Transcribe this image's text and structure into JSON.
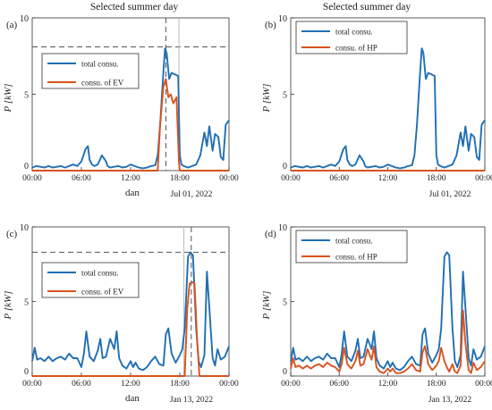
{
  "column_titles": [
    "Selected summer day",
    "Selected summer day"
  ],
  "colors": {
    "total": "#1f6fb4",
    "sub": "#d9531e",
    "axis": "#333333",
    "dash": "#555555"
  },
  "chart_data": [
    {
      "type": "line",
      "panel_label": "(a)",
      "ylabel": "P  [kW]",
      "xlabel": "dan",
      "date_label": "Jul 01, 2022",
      "ylim": [
        0,
        10
      ],
      "yticks": [
        0,
        5,
        10
      ],
      "xticks": [
        "00:00",
        "06:00",
        "12:00",
        "18:00",
        "00:00"
      ],
      "xlim_hours": [
        0,
        24
      ],
      "legend": [
        "total consu.",
        "consu. of EV"
      ],
      "legend_position": "middle-left",
      "hline": 8.1,
      "vline_dashed_hour": 16.3,
      "vline_grey_hour": 17.9,
      "series": [
        {
          "name": "total consu.",
          "color": "total",
          "x": [
            0,
            0.5,
            1,
            1.5,
            2,
            2.5,
            3,
            3.5,
            4,
            4.5,
            5,
            5.5,
            6,
            6.5,
            6.8,
            7,
            7.3,
            7.6,
            8,
            8.5,
            9,
            9.2,
            9.5,
            10,
            10.5,
            11,
            11.5,
            12,
            12.5,
            13,
            13.5,
            14,
            14.5,
            15,
            15.3,
            15.6,
            16,
            16.2,
            16.4,
            16.7,
            17,
            17.4,
            17.8,
            18,
            18.2,
            18.5,
            19,
            19.5,
            20,
            20.5,
            21,
            21.3,
            21.6,
            22,
            22.3,
            22.7,
            23,
            23.3,
            23.6,
            24
          ],
          "y": [
            0.2,
            0.3,
            0.25,
            0.2,
            0.3,
            0.2,
            0.25,
            0.3,
            0.2,
            0.3,
            0.4,
            0.3,
            0.6,
            1.4,
            1.6,
            0.7,
            0.4,
            0.3,
            0.4,
            1.0,
            0.6,
            0.3,
            0.2,
            0.25,
            0.3,
            0.2,
            0.25,
            0.4,
            0.3,
            0.2,
            0.15,
            0.2,
            0.3,
            0.35,
            1.0,
            3.0,
            6.5,
            8.0,
            7.7,
            6.0,
            6.4,
            6.3,
            6.2,
            1.0,
            0.4,
            0.3,
            0.2,
            0.3,
            0.4,
            1.0,
            2.5,
            1.6,
            2.9,
            1.3,
            2.4,
            2.2,
            0.9,
            0.7,
            3.0,
            3.3
          ]
        },
        {
          "name": "consu. of EV",
          "color": "sub",
          "x": [
            0,
            15.3,
            15.6,
            16,
            16.3,
            16.6,
            16.9,
            17.2,
            17.6,
            17.9,
            18,
            24
          ],
          "y": [
            0,
            0,
            3.0,
            5.5,
            6.0,
            4.8,
            5.0,
            4.4,
            4.8,
            0.5,
            0,
            0
          ]
        }
      ]
    },
    {
      "type": "line",
      "panel_label": "(b)",
      "ylabel": "P  [kW]",
      "xlabel": "",
      "date_label": "Jul 01, 2022",
      "ylim": [
        0,
        10
      ],
      "yticks": [
        0,
        5,
        10
      ],
      "xticks": [
        "00:00",
        "06:00",
        "12:00",
        "18:00",
        "00:00"
      ],
      "xlim_hours": [
        0,
        24
      ],
      "legend": [
        "total consu.",
        "consu. of HP"
      ],
      "legend_position": "top-left",
      "series": [
        {
          "name": "total consu.",
          "color": "total",
          "x": [
            0,
            0.5,
            1,
            1.5,
            2,
            2.5,
            3,
            3.5,
            4,
            4.5,
            5,
            5.5,
            6,
            6.5,
            6.8,
            7,
            7.3,
            7.6,
            8,
            8.5,
            9,
            9.2,
            9.5,
            10,
            10.5,
            11,
            11.5,
            12,
            12.5,
            13,
            13.5,
            14,
            14.5,
            15,
            15.3,
            15.6,
            16,
            16.2,
            16.4,
            16.7,
            17,
            17.4,
            17.8,
            18,
            18.2,
            18.5,
            19,
            19.5,
            20,
            20.5,
            21,
            21.3,
            21.6,
            22,
            22.3,
            22.7,
            23,
            23.3,
            23.6,
            24
          ],
          "y": [
            0.2,
            0.3,
            0.25,
            0.2,
            0.3,
            0.2,
            0.25,
            0.3,
            0.2,
            0.3,
            0.4,
            0.3,
            0.6,
            1.4,
            1.6,
            0.7,
            0.4,
            0.3,
            0.4,
            1.0,
            0.6,
            0.3,
            0.2,
            0.25,
            0.3,
            0.2,
            0.25,
            0.4,
            0.3,
            0.2,
            0.15,
            0.2,
            0.3,
            0.35,
            1.0,
            3.0,
            6.5,
            8.0,
            7.7,
            6.0,
            6.4,
            6.3,
            6.2,
            1.0,
            0.4,
            0.3,
            0.2,
            0.3,
            0.4,
            1.0,
            2.5,
            1.6,
            2.9,
            1.3,
            2.4,
            2.2,
            0.9,
            0.7,
            3.0,
            3.3
          ]
        },
        {
          "name": "consu. of HP",
          "color": "sub",
          "x": [
            0,
            24
          ],
          "y": [
            0,
            0
          ]
        }
      ]
    },
    {
      "type": "line",
      "panel_label": "(c)",
      "ylabel": "P  [kW]",
      "xlabel": "dan",
      "date_label": "Jan 13, 2022",
      "ylim": [
        0,
        10
      ],
      "yticks": [
        0,
        5,
        10
      ],
      "xticks": [
        "00:00",
        "06:00",
        "12:00",
        "18:00",
        "00:00"
      ],
      "xlim_hours": [
        0,
        24
      ],
      "legend": [
        "total consu.",
        "consu. of EV"
      ],
      "legend_position": "middle-left",
      "hline": 8.3,
      "vline_dashed_hour": 19.4,
      "vline_grey_hour": 18.5,
      "series": [
        {
          "name": "total consu.",
          "color": "total",
          "x": [
            0,
            0.3,
            0.6,
            1,
            1.5,
            2,
            2.5,
            3,
            3.5,
            4,
            4.5,
            5,
            5.5,
            6,
            6.3,
            6.6,
            7,
            7.5,
            8,
            8.3,
            8.6,
            9,
            9.5,
            10,
            10.3,
            10.6,
            11,
            11.5,
            12,
            12.3,
            12.6,
            13,
            13.5,
            14,
            14.5,
            15,
            15.5,
            16,
            16.3,
            16.6,
            17,
            17.5,
            18,
            18.3,
            18.6,
            19,
            19.3,
            19.6,
            20,
            20.3,
            20.6,
            21,
            21.3,
            21.6,
            22,
            22.3,
            22.6,
            23,
            23.5,
            24
          ],
          "y": [
            1.0,
            1.9,
            1.1,
            1.2,
            1.0,
            1.3,
            1.0,
            1.2,
            1.3,
            1.1,
            1.5,
            1.2,
            1.2,
            0.6,
            1.5,
            3.0,
            1.3,
            1.0,
            1.7,
            2.5,
            1.2,
            1.3,
            2.5,
            1.8,
            3.0,
            1.2,
            0.7,
            0.5,
            1.0,
            0.6,
            0.9,
            0.5,
            0.4,
            0.6,
            1.0,
            1.3,
            0.8,
            0.7,
            2.8,
            3.2,
            1.5,
            0.9,
            1.4,
            1.8,
            3.2,
            8.0,
            8.3,
            8.1,
            3.2,
            1.0,
            0.6,
            1.4,
            7.0,
            4.6,
            1.2,
            0.7,
            1.8,
            1.1,
            1.3,
            2.0
          ]
        },
        {
          "name": "consu. of EV",
          "color": "sub",
          "x": [
            0,
            18.6,
            18.9,
            19.2,
            19.5,
            19.8,
            20.1,
            20.4,
            24
          ],
          "y": [
            0,
            0,
            4.5,
            6.2,
            6.3,
            6.2,
            2.5,
            0,
            0
          ]
        }
      ]
    },
    {
      "type": "line",
      "panel_label": "(d)",
      "ylabel": "P  [kW]",
      "xlabel": "",
      "date_label": "Jan 13, 2022",
      "ylim": [
        0,
        10
      ],
      "yticks": [
        0,
        5,
        10
      ],
      "xticks": [
        "00:00",
        "06:00",
        "12:00",
        "18:00",
        "00:00"
      ],
      "xlim_hours": [
        0,
        24
      ],
      "legend": [
        "total consu.",
        "consu. of HP"
      ],
      "legend_position": "top-left",
      "series": [
        {
          "name": "total consu.",
          "color": "total",
          "x": [
            0,
            0.3,
            0.6,
            1,
            1.5,
            2,
            2.5,
            3,
            3.5,
            4,
            4.5,
            5,
            5.5,
            6,
            6.3,
            6.6,
            7,
            7.5,
            8,
            8.3,
            8.6,
            9,
            9.5,
            10,
            10.3,
            10.6,
            11,
            11.5,
            12,
            12.3,
            12.6,
            13,
            13.5,
            14,
            14.5,
            15,
            15.5,
            16,
            16.3,
            16.6,
            17,
            17.5,
            18,
            18.3,
            18.6,
            19,
            19.3,
            19.6,
            20,
            20.3,
            20.6,
            21,
            21.3,
            21.6,
            22,
            22.3,
            22.6,
            23,
            23.5,
            24
          ],
          "y": [
            1.0,
            1.9,
            1.1,
            1.2,
            1.0,
            1.3,
            1.0,
            1.2,
            1.3,
            1.1,
            1.5,
            1.2,
            1.2,
            0.6,
            1.5,
            3.0,
            1.3,
            1.0,
            1.7,
            2.5,
            1.2,
            1.3,
            2.5,
            1.8,
            3.0,
            1.2,
            0.7,
            0.5,
            1.0,
            0.6,
            0.9,
            0.5,
            0.4,
            0.6,
            1.0,
            1.3,
            0.8,
            0.7,
            2.8,
            3.2,
            1.5,
            0.9,
            1.4,
            1.8,
            3.2,
            8.0,
            8.3,
            8.1,
            3.2,
            1.0,
            0.6,
            1.4,
            7.0,
            4.6,
            1.2,
            0.7,
            1.8,
            1.1,
            1.3,
            2.0
          ]
        },
        {
          "name": "consu. of HP",
          "color": "sub",
          "x": [
            0,
            0.3,
            0.6,
            1,
            1.5,
            2,
            2.5,
            3,
            3.5,
            4,
            4.5,
            5,
            5.5,
            6,
            6.3,
            6.6,
            7,
            7.5,
            8,
            8.3,
            8.6,
            9,
            9.5,
            10,
            10.3,
            10.6,
            11,
            11.5,
            12,
            12.3,
            12.6,
            13,
            13.5,
            14,
            14.5,
            15,
            15.5,
            16,
            16.3,
            16.6,
            17,
            17.5,
            18,
            18.3,
            18.6,
            19,
            19.3,
            19.6,
            20,
            20.3,
            20.6,
            21,
            21.3,
            21.6,
            22,
            22.3,
            22.6,
            23,
            23.5,
            24
          ],
          "y": [
            0.5,
            1.2,
            0.6,
            0.7,
            0.5,
            0.7,
            0.5,
            0.7,
            0.8,
            0.6,
            0.9,
            0.7,
            0.6,
            0.3,
            0.8,
            1.9,
            0.8,
            0.5,
            1.0,
            1.7,
            0.7,
            0.8,
            1.8,
            1.1,
            2.0,
            0.6,
            0.3,
            0.2,
            0.5,
            0.3,
            0.5,
            0.2,
            0.2,
            0.3,
            0.5,
            0.8,
            0.4,
            0.3,
            1.6,
            2.0,
            0.8,
            0.4,
            0.7,
            1.0,
            1.9,
            1.0,
            0.6,
            0.3,
            0.8,
            0.3,
            0.2,
            0.7,
            4.4,
            2.2,
            0.4,
            0.2,
            0.9,
            0.4,
            0.6,
            1.0
          ]
        }
      ]
    }
  ]
}
